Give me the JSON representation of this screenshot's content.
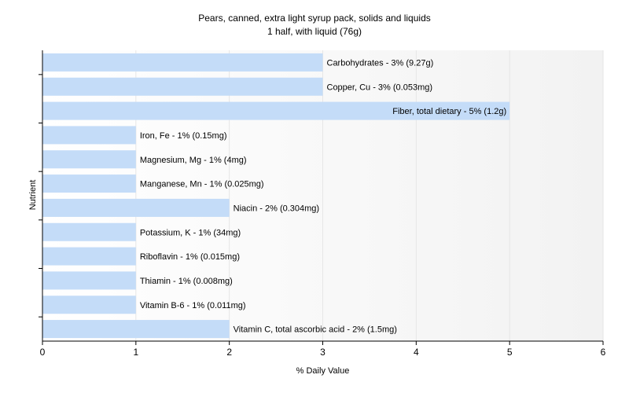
{
  "title_line1": "Pears, canned, extra light syrup pack, solids and liquids",
  "title_line2": "1 half, with liquid (76g)",
  "chart_data": {
    "type": "bar",
    "orientation": "horizontal",
    "xlabel": "% Daily Value",
    "ylabel": "Nutrient",
    "xlim": [
      0,
      6
    ],
    "xticks": [
      0,
      1,
      2,
      3,
      4,
      5,
      6
    ],
    "grid": true,
    "bar_color": "#c4dcf8",
    "grid_color": "#e6e6e6",
    "categories": [
      "Carbohydrates",
      "Copper, Cu",
      "Fiber, total dietary",
      "Iron, Fe",
      "Magnesium, Mg",
      "Manganese, Mn",
      "Niacin",
      "Potassium, K",
      "Riboflavin",
      "Thiamin",
      "Vitamin B-6",
      "Vitamin C, total ascorbic acid"
    ],
    "values": [
      3,
      3,
      5,
      1,
      1,
      1,
      2,
      1,
      1,
      1,
      1,
      2
    ],
    "labels": [
      "Carbohydrates - 3% (9.27g)",
      "Copper, Cu - 3% (0.053mg)",
      "Fiber, total dietary - 5% (1.2g)",
      "Iron, Fe - 1% (0.15mg)",
      "Magnesium, Mg - 1% (4mg)",
      "Manganese, Mn - 1% (0.025mg)",
      "Niacin - 2% (0.304mg)",
      "Potassium, K - 1% (34mg)",
      "Riboflavin - 1% (0.015mg)",
      "Thiamin - 1% (0.008mg)",
      "Vitamin B-6 - 1% (0.011mg)",
      "Vitamin C, total ascorbic acid - 2% (1.5mg)"
    ]
  }
}
